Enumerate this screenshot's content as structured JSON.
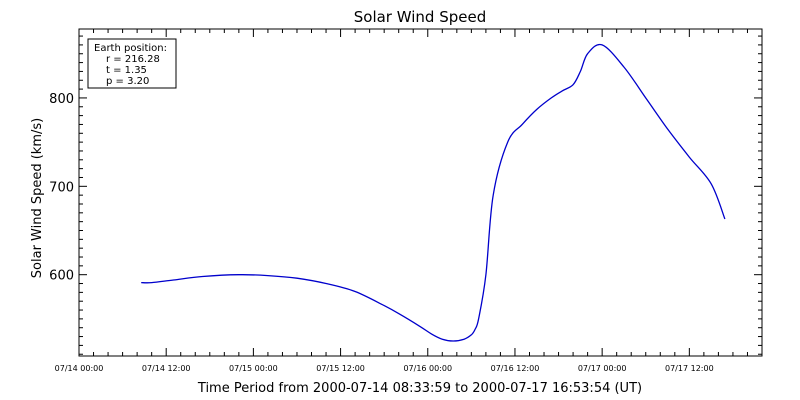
{
  "chart_data": {
    "type": "line",
    "title": "Solar Wind Speed",
    "xlabel": "Time Period from 2000-07-14 08:33:59 to 2000-07-17 16:53:54 (UT)",
    "ylabel": "Solar Wind Speed (km/s)",
    "x_ticks": [
      "07/14 00:00",
      "07/14 12:00",
      "07/15 00:00",
      "07/15 12:00",
      "07/16 00:00",
      "07/16 12:00",
      "07/17 00:00",
      "07/17 12:00"
    ],
    "xlim": [
      "07/14 00:00",
      "07/17 22:00"
    ],
    "y_ticks": [
      "600",
      "700",
      "800"
    ],
    "ylim": [
      508,
      878
    ],
    "grid": false,
    "series_color": "#0000cc",
    "series": [
      {
        "x": [
          "07/14 08:34",
          "07/14 10:00",
          "07/14 13:00",
          "07/14 17:00",
          "07/14 22:00",
          "07/15 02:00",
          "07/15 06:00",
          "07/15 10:00",
          "07/15 14:00",
          "07/15 18:00",
          "07/15 20:00",
          "07/15 23:00",
          "07/16 00:30",
          "07/16 02:00",
          "07/16 03:30",
          "07/16 05:00",
          "07/16 06:00",
          "07/16 06:30",
          "07/16 07:00",
          "07/16 08:00",
          "07/16 09:00",
          "07/16 11:00",
          "07/16 13:00",
          "07/16 15:00",
          "07/16 17:00",
          "07/16 18:30",
          "07/16 20:00",
          "07/16 21:00",
          "07/16 22:00",
          "07/17 00:00",
          "07/17 03:00",
          "07/17 06:00",
          "07/17 09:00",
          "07/17 12:00",
          "07/17 15:00",
          "07/17 16:54"
        ],
        "y": [
          591,
          591,
          594,
          598,
          600,
          599,
          596,
          590,
          581,
          565,
          556,
          541,
          533,
          527,
          525,
          527,
          532,
          538,
          550,
          600,
          690,
          750,
          770,
          787,
          800,
          808,
          815,
          830,
          850,
          860,
          835,
          800,
          765,
          733,
          703,
          663
        ]
      }
    ],
    "legend": {
      "placement": "top-left",
      "lines": [
        "Earth position:",
        "r = 216.28",
        "t = 1.35",
        "p = 3.20"
      ]
    }
  }
}
